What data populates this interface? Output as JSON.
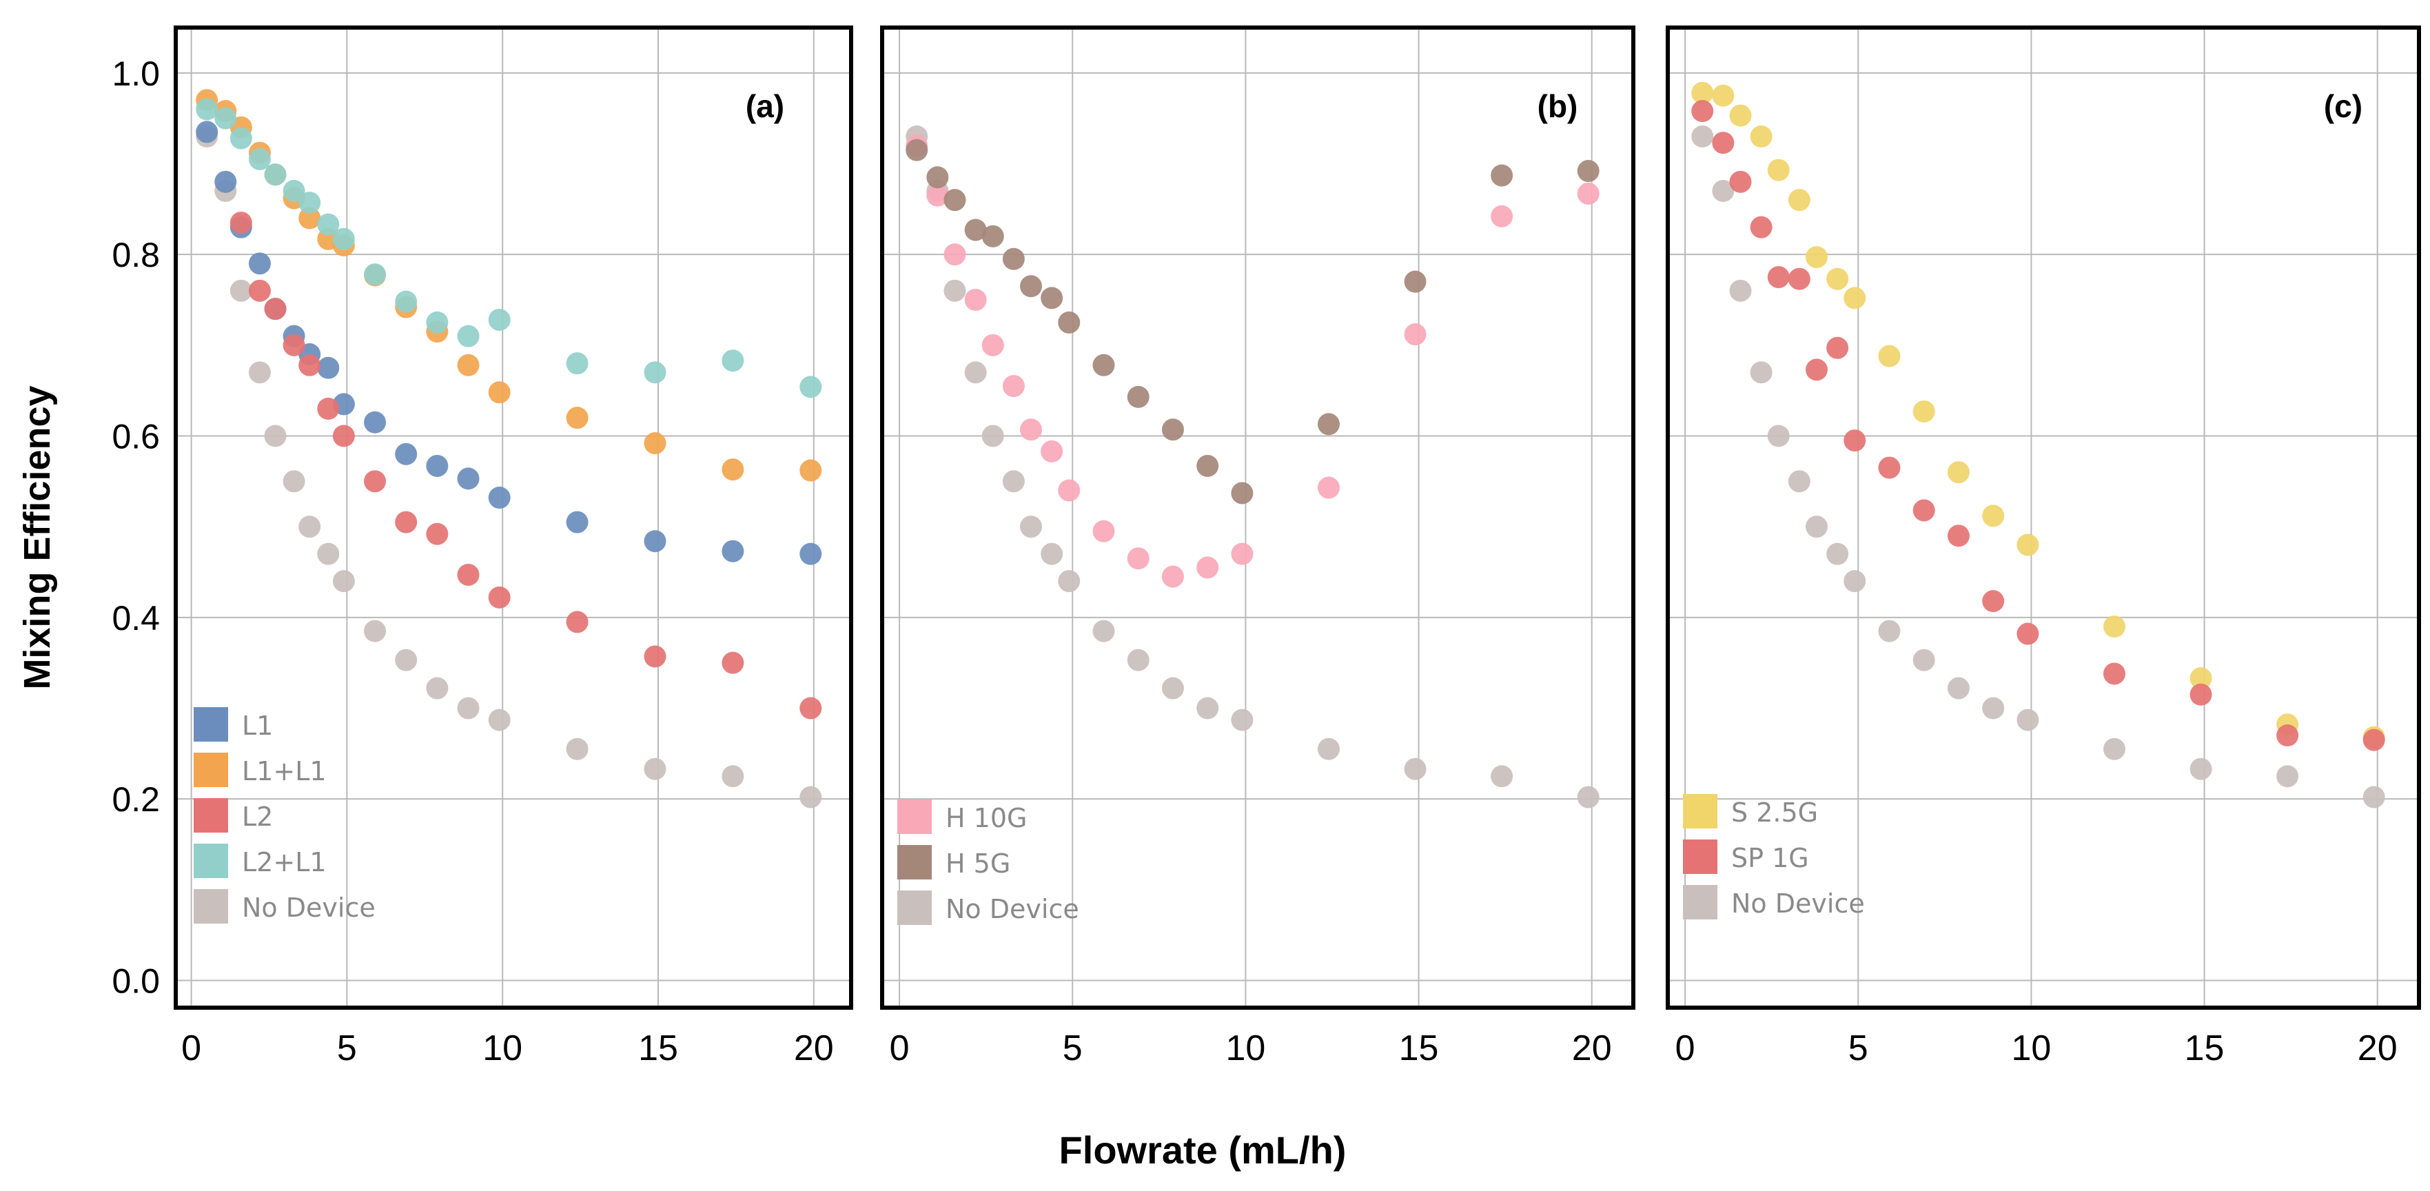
{
  "figure": {
    "ylabel": "Mixing Efficiency",
    "xlabel": "Flowrate (mL/h)"
  },
  "chart_data": [
    {
      "type": "scatter",
      "title": "(a)",
      "xlabel": "Flowrate (mL/h)",
      "ylabel": "Mixing Efficiency",
      "xlim": [
        -0.5,
        21.2
      ],
      "ylim": [
        -0.03,
        1.05
      ],
      "xticks": [
        0,
        5,
        10,
        15,
        20
      ],
      "yticks": [
        0.0,
        0.2,
        0.4,
        0.6,
        0.8,
        1.0
      ],
      "ytick_labels": [
        "0.0",
        "0.2",
        "0.4",
        "0.6",
        "0.8",
        "1.0"
      ],
      "legend_position": "bottom-left",
      "series": [
        {
          "name": "No Device",
          "color": "#c9bfbc",
          "x": [
            0.5,
            1.1,
            1.6,
            2.2,
            2.7,
            3.3,
            3.8,
            4.4,
            4.9,
            5.9,
            6.9,
            7.9,
            8.9,
            9.9,
            12.4,
            14.9,
            17.4,
            19.9
          ],
          "y": [
            0.93,
            0.87,
            0.76,
            0.67,
            0.6,
            0.55,
            0.5,
            0.47,
            0.44,
            0.385,
            0.353,
            0.322,
            0.3,
            0.287,
            0.255,
            0.233,
            0.225,
            0.202
          ]
        },
        {
          "name": "L1",
          "color": "#6a8dbd",
          "x": [
            0.5,
            1.1,
            1.6,
            2.2,
            2.7,
            3.3,
            3.8,
            4.4,
            4.9,
            5.9,
            6.9,
            7.9,
            8.9,
            9.9,
            12.4,
            14.9,
            17.4,
            19.9
          ],
          "y": [
            0.935,
            0.88,
            0.83,
            0.79,
            0.74,
            0.71,
            0.69,
            0.675,
            0.635,
            0.615,
            0.58,
            0.567,
            0.553,
            0.532,
            0.505,
            0.484,
            0.473,
            0.47
          ]
        },
        {
          "name": "L1+L1",
          "color": "#f2a54e",
          "x": [
            0.5,
            1.1,
            1.6,
            2.2,
            2.7,
            3.3,
            3.8,
            4.4,
            4.9,
            5.9,
            6.9,
            7.9,
            8.9,
            9.9,
            12.4,
            14.9,
            17.4,
            19.9
          ],
          "y": [
            0.97,
            0.958,
            0.94,
            0.912,
            0.888,
            0.862,
            0.84,
            0.817,
            0.81,
            0.777,
            0.742,
            0.715,
            0.678,
            0.648,
            0.62,
            0.592,
            0.563,
            0.562
          ]
        },
        {
          "name": "L2",
          "color": "#e57373",
          "x": [
            1.6,
            2.2,
            2.7,
            3.3,
            3.8,
            4.4,
            4.9,
            5.9,
            6.9,
            7.9,
            8.9,
            9.9,
            12.4,
            14.9,
            17.4,
            19.9
          ],
          "y": [
            0.835,
            0.76,
            0.74,
            0.7,
            0.678,
            0.63,
            0.6,
            0.55,
            0.505,
            0.492,
            0.447,
            0.422,
            0.395,
            0.357,
            0.35,
            0.3
          ]
        },
        {
          "name": "L2+L1",
          "color": "#93cfca",
          "x": [
            0.5,
            1.1,
            1.6,
            2.2,
            2.7,
            3.3,
            3.8,
            4.4,
            4.9,
            5.9,
            6.9,
            7.9,
            8.9,
            9.9,
            12.4,
            14.9,
            17.4,
            19.9
          ],
          "y": [
            0.96,
            0.95,
            0.928,
            0.905,
            0.888,
            0.87,
            0.857,
            0.833,
            0.817,
            0.778,
            0.748,
            0.725,
            0.71,
            0.728,
            0.68,
            0.67,
            0.683,
            0.654
          ]
        }
      ],
      "legend_order": [
        "L1",
        "L1+L1",
        "L2",
        "L2+L1",
        "No Device"
      ]
    },
    {
      "type": "scatter",
      "title": "(b)",
      "xlabel": "Flowrate (mL/h)",
      "ylabel": "Mixing Efficiency",
      "xlim": [
        -0.5,
        21.2
      ],
      "ylim": [
        -0.03,
        1.05
      ],
      "xticks": [
        0,
        5,
        10,
        15,
        20
      ],
      "yticks": [
        0.0,
        0.2,
        0.4,
        0.6,
        0.8,
        1.0
      ],
      "legend_position": "bottom-left",
      "series": [
        {
          "name": "No Device",
          "color": "#c9bfbc",
          "x": [
            0.5,
            1.1,
            1.6,
            2.2,
            2.7,
            3.3,
            3.8,
            4.4,
            4.9,
            5.9,
            6.9,
            7.9,
            8.9,
            9.9,
            12.4,
            14.9,
            17.4,
            19.9
          ],
          "y": [
            0.93,
            0.87,
            0.76,
            0.67,
            0.6,
            0.55,
            0.5,
            0.47,
            0.44,
            0.385,
            0.353,
            0.322,
            0.3,
            0.287,
            0.255,
            0.233,
            0.225,
            0.202
          ]
        },
        {
          "name": "H 10G",
          "color": "#f9a8b8",
          "x": [
            0.5,
            1.1,
            1.6,
            2.2,
            2.7,
            3.3,
            3.8,
            4.4,
            4.9,
            5.9,
            6.9,
            7.9,
            8.9,
            9.9,
            12.4,
            14.9,
            17.4,
            19.9
          ],
          "y": [
            0.92,
            0.865,
            0.8,
            0.75,
            0.7,
            0.655,
            0.607,
            0.583,
            0.54,
            0.495,
            0.465,
            0.445,
            0.455,
            0.47,
            0.543,
            0.712,
            0.842,
            0.867
          ]
        },
        {
          "name": "H 5G",
          "color": "#a5877a",
          "x": [
            0.5,
            1.1,
            1.6,
            2.2,
            2.7,
            3.3,
            3.8,
            4.4,
            4.9,
            5.9,
            6.9,
            7.9,
            8.9,
            9.9,
            12.4,
            14.9,
            17.4,
            19.9
          ],
          "y": [
            0.915,
            0.885,
            0.86,
            0.827,
            0.82,
            0.795,
            0.765,
            0.752,
            0.725,
            0.678,
            0.643,
            0.607,
            0.567,
            0.537,
            0.613,
            0.77,
            0.887,
            0.892
          ]
        }
      ],
      "legend_order": [
        "H 10G",
        "H 5G",
        "No Device"
      ]
    },
    {
      "type": "scatter",
      "title": "(c)",
      "xlabel": "Flowrate (mL/h)",
      "ylabel": "Mixing Efficiency",
      "xlim": [
        -0.5,
        21.2
      ],
      "ylim": [
        -0.03,
        1.05
      ],
      "xticks": [
        0,
        5,
        10,
        15,
        20
      ],
      "yticks": [
        0.0,
        0.2,
        0.4,
        0.6,
        0.8,
        1.0
      ],
      "legend_position": "bottom-left",
      "series": [
        {
          "name": "No Device",
          "color": "#c9bfbc",
          "x": [
            0.5,
            1.1,
            1.6,
            2.2,
            2.7,
            3.3,
            3.8,
            4.4,
            4.9,
            5.9,
            6.9,
            7.9,
            8.9,
            9.9,
            12.4,
            14.9,
            17.4,
            19.9
          ],
          "y": [
            0.93,
            0.87,
            0.76,
            0.67,
            0.6,
            0.55,
            0.5,
            0.47,
            0.44,
            0.385,
            0.353,
            0.322,
            0.3,
            0.287,
            0.255,
            0.233,
            0.225,
            0.202
          ]
        },
        {
          "name": "S 2.5G",
          "color": "#f1d46a",
          "x": [
            0.5,
            1.1,
            1.6,
            2.2,
            2.7,
            3.3,
            3.8,
            4.4,
            4.9,
            5.9,
            6.9,
            7.9,
            8.9,
            9.9,
            12.4,
            14.9,
            17.4,
            19.9
          ],
          "y": [
            0.978,
            0.975,
            0.953,
            0.93,
            0.893,
            0.86,
            0.797,
            0.773,
            0.752,
            0.688,
            0.627,
            0.56,
            0.512,
            0.48,
            0.39,
            0.333,
            0.282,
            0.268
          ]
        },
        {
          "name": "SP 1G",
          "color": "#e57373",
          "x": [
            0.5,
            1.1,
            1.6,
            2.2,
            2.7,
            3.3,
            3.8,
            4.4,
            4.9,
            5.9,
            6.9,
            7.9,
            8.9,
            9.9,
            12.4,
            14.9,
            17.4,
            19.9
          ],
          "y": [
            0.958,
            0.923,
            0.88,
            0.83,
            0.775,
            0.773,
            0.673,
            0.697,
            0.595,
            0.565,
            0.518,
            0.49,
            0.418,
            0.382,
            0.338,
            0.315,
            0.27,
            0.265
          ]
        }
      ],
      "legend_order": [
        "S 2.5G",
        "SP 1G",
        "No Device"
      ]
    }
  ]
}
